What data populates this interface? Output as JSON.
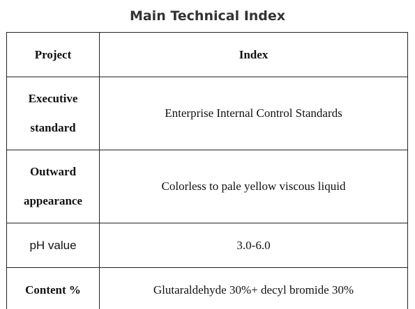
{
  "title": "Main Technical Index",
  "table": {
    "header": [
      "Project",
      "Index"
    ],
    "rows": [
      [
        "Executive standard",
        "Enterprise Internal Control Standards"
      ],
      [
        "Outward appearance",
        "Colorless to pale yellow viscous liquid"
      ],
      [
        "pH value",
        "3.0-6.0"
      ],
      [
        "Content %",
        "Glutaraldehyde 30%+ decyl bromide 30%"
      ]
    ]
  }
}
